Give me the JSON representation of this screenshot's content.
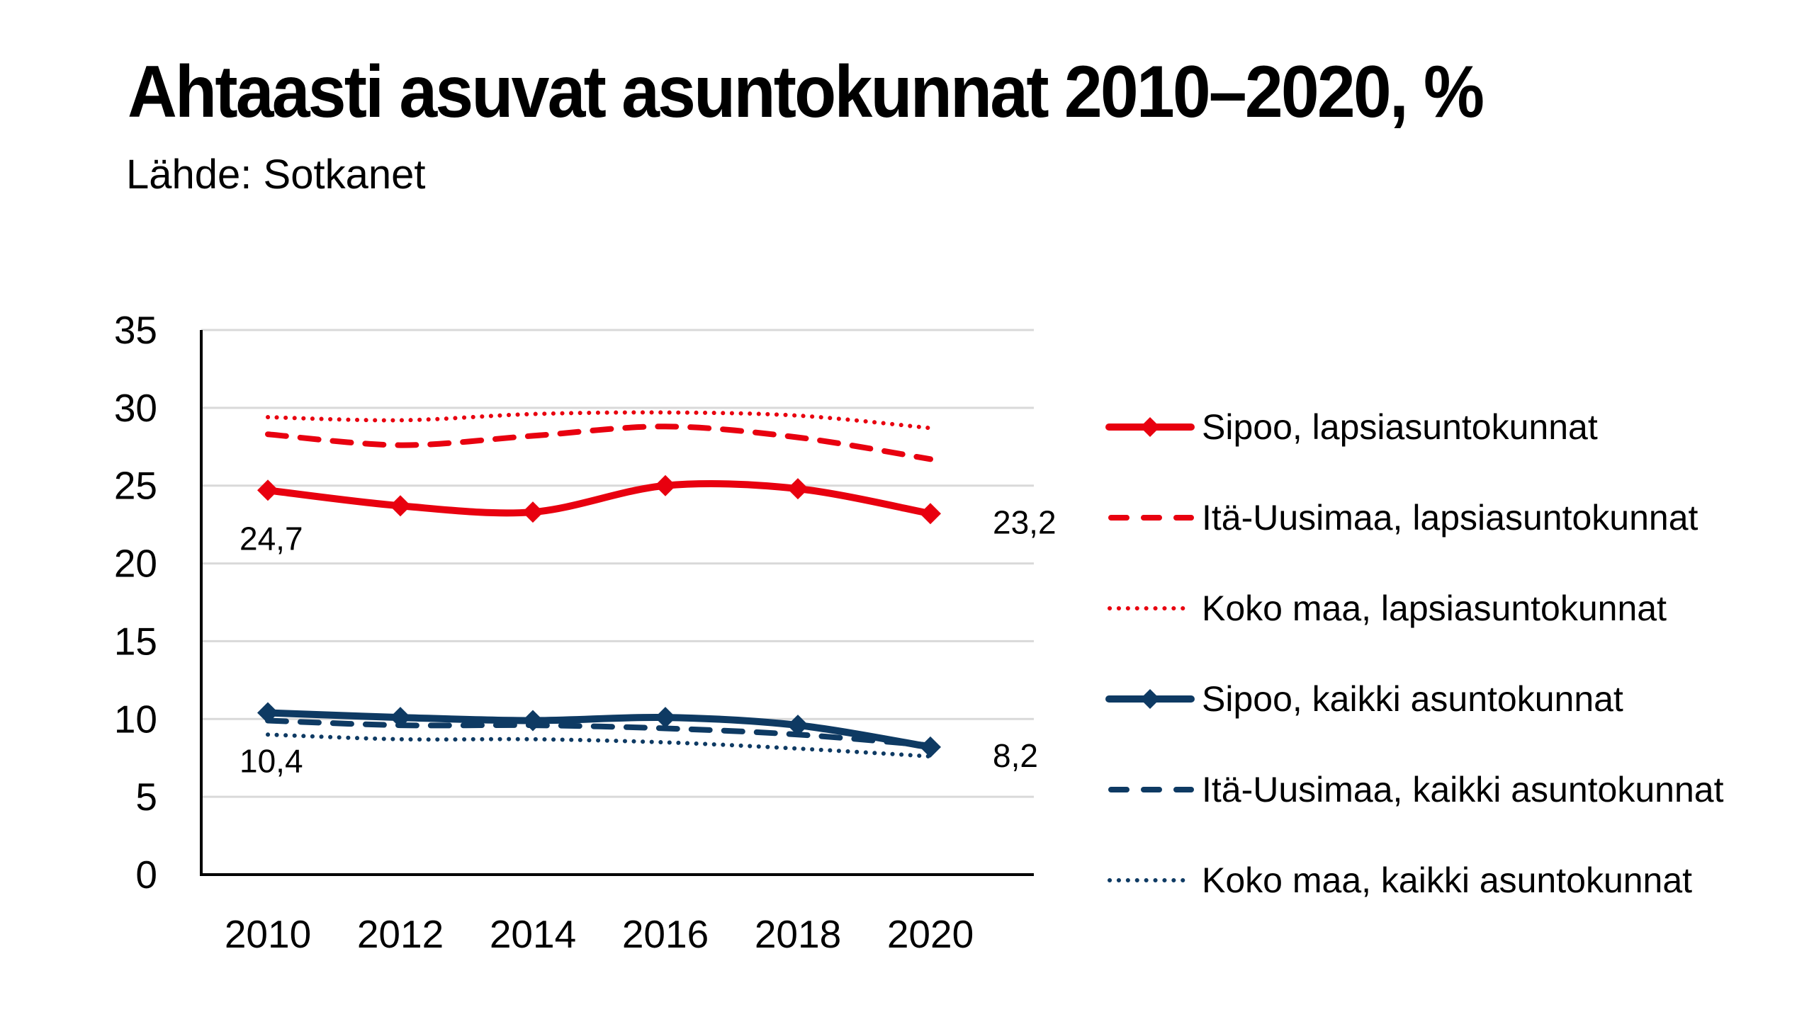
{
  "header": {
    "title": "Ahtaasti asuvat asuntokunnat 2010–2020, %",
    "subtitle": "Lähde: Sotkanet"
  },
  "chart_data": {
    "type": "line",
    "title": "Ahtaasti asuvat asuntokunnat 2010–2020, %",
    "subtitle": "Lähde: Sotkanet",
    "xlabel": "",
    "ylabel": "",
    "categories": [
      "2010",
      "2012",
      "2014",
      "2016",
      "2018",
      "2020"
    ],
    "ylim": [
      0,
      35
    ],
    "yticks": [
      "0",
      "5",
      "10",
      "15",
      "20",
      "25",
      "30",
      "35"
    ],
    "grid": true,
    "legend_position": "right",
    "series": [
      {
        "name": "Sipoo, lapsiasuntokunnat",
        "values": [
          24.7,
          23.7,
          23.3,
          25.0,
          24.8,
          23.2
        ],
        "color": "#E8000F",
        "style": "solid",
        "marker": "diamond"
      },
      {
        "name": "Itä-Uusimaa, lapsiasuntokunnat",
        "values": [
          28.3,
          27.6,
          28.2,
          28.8,
          28.1,
          26.7
        ],
        "color": "#E8000F",
        "style": "dashed",
        "marker": "none"
      },
      {
        "name": "Koko maa, lapsiasuntokunnat",
        "values": [
          29.4,
          29.2,
          29.6,
          29.7,
          29.5,
          28.7
        ],
        "color": "#E8000F",
        "style": "dotted",
        "marker": "none"
      },
      {
        "name": "Sipoo, kaikki asuntokunnat",
        "values": [
          10.4,
          10.1,
          9.9,
          10.1,
          9.6,
          8.2
        ],
        "color": "#0E3A63",
        "style": "solid",
        "marker": "diamond"
      },
      {
        "name": "Itä-Uusimaa, kaikki asuntokunnat",
        "values": [
          9.9,
          9.6,
          9.6,
          9.4,
          9.0,
          8.3
        ],
        "color": "#0E3A63",
        "style": "dashed",
        "marker": "none"
      },
      {
        "name": "Koko maa, kaikki asuntokunnat",
        "values": [
          9.0,
          8.7,
          8.7,
          8.5,
          8.1,
          7.6
        ],
        "color": "#0E3A63",
        "style": "dotted",
        "marker": "none"
      }
    ],
    "data_labels": [
      {
        "series": "Sipoo, lapsiasuntokunnat",
        "category": "2010",
        "text": "24,7"
      },
      {
        "series": "Sipoo, lapsiasuntokunnat",
        "category": "2020",
        "text": "23,2"
      },
      {
        "series": "Sipoo, kaikki asuntokunnat",
        "category": "2010",
        "text": "10,4"
      },
      {
        "series": "Sipoo, kaikki asuntokunnat",
        "category": "2020",
        "text": "8,2"
      }
    ]
  }
}
